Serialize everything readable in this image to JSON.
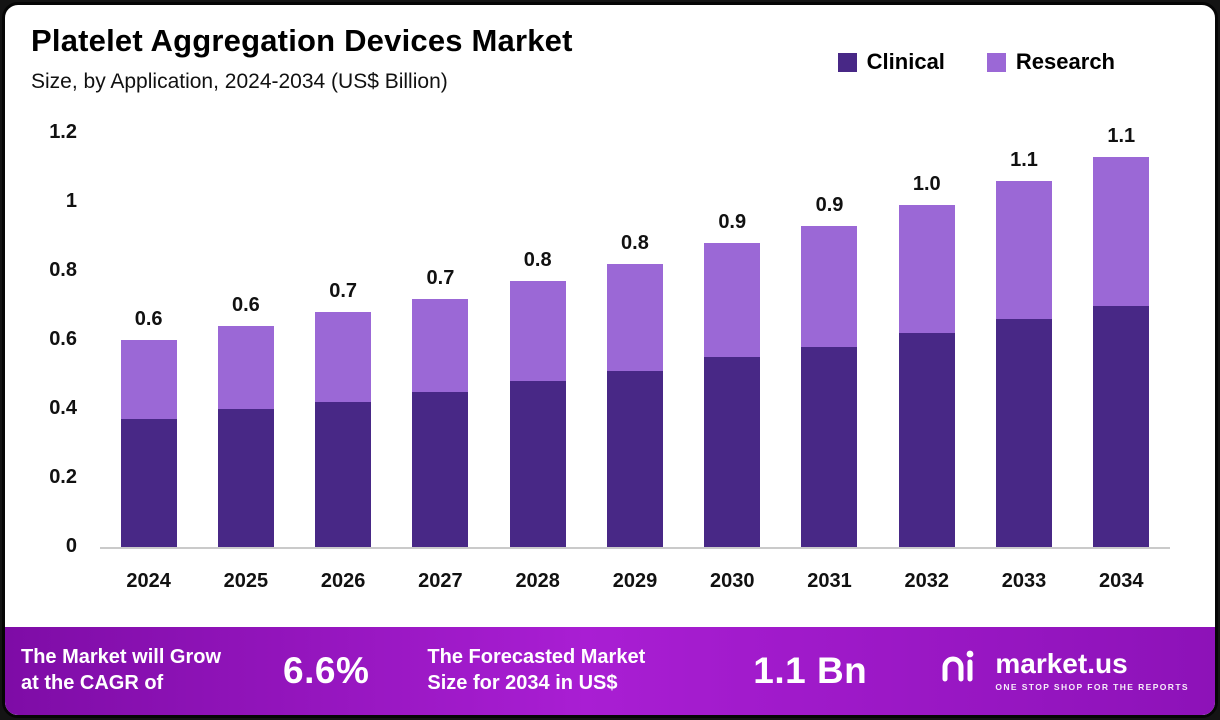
{
  "header": {
    "title": "Platelet Aggregation Devices Market",
    "subtitle": "Size, by Application, 2024-2034 (US$ Billion)"
  },
  "chart_data": {
    "type": "bar",
    "stacked": true,
    "title": "Platelet Aggregation Devices Market Size, by Application, 2024-2034 (US$ Billion)",
    "categories": [
      "2024",
      "2025",
      "2026",
      "2027",
      "2028",
      "2029",
      "2030",
      "2031",
      "2032",
      "2033",
      "2034"
    ],
    "series": [
      {
        "name": "Clinical",
        "color": "#482886",
        "values": [
          0.37,
          0.4,
          0.42,
          0.45,
          0.48,
          0.51,
          0.55,
          0.58,
          0.62,
          0.66,
          0.7
        ]
      },
      {
        "name": "Research",
        "color": "#9b68d6",
        "values": [
          0.23,
          0.24,
          0.26,
          0.27,
          0.29,
          0.31,
          0.33,
          0.35,
          0.37,
          0.4,
          0.43
        ]
      }
    ],
    "totals_labels": [
      "0.6",
      "0.6",
      "0.7",
      "0.7",
      "0.8",
      "0.8",
      "0.9",
      "0.9",
      "1.0",
      "1.1",
      "1.1"
    ],
    "xlabel": "",
    "ylabel": "",
    "ylim": [
      0,
      1.2
    ],
    "yticks": [
      "1.2",
      "1",
      "0.8",
      "0.6",
      "0.4",
      "0.2",
      "0"
    ],
    "grid": false,
    "legend_position": "top-right"
  },
  "banner": {
    "cagr_label": "The Market will Grow\nat the CAGR of",
    "cagr_value": "6.6%",
    "forecast_label": "The Forecasted Market\nSize for 2034 in US$",
    "forecast_value": "1.1 Bn",
    "brand": "market.us",
    "brand_tagline": "ONE STOP SHOP FOR THE REPORTS"
  },
  "colors": {
    "clinical": "#482886",
    "research": "#9b68d6",
    "banner_gradient_start": "#7e0ca6",
    "banner_gradient_mid": "#a91ed3",
    "banner_gradient_end": "#8d12b8",
    "axis_line": "#cacaca"
  }
}
